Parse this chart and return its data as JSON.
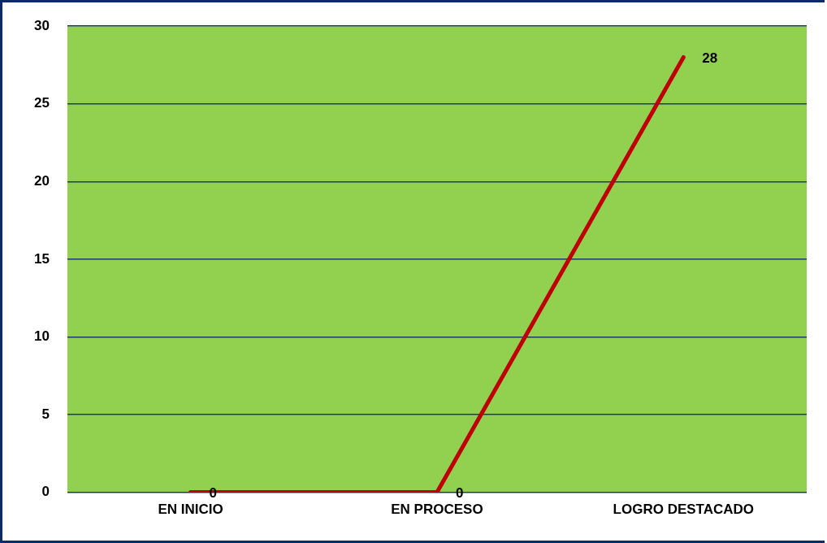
{
  "chart_data": {
    "type": "line",
    "categories": [
      "EN INICIO",
      "EN PROCESO",
      "LOGRO DESTACADO"
    ],
    "series": [
      {
        "color": "#c00000",
        "values": [
          0,
          0,
          28
        ]
      }
    ],
    "ylim": [
      0,
      30
    ],
    "yticks": [
      0,
      5,
      10,
      15,
      20,
      25,
      30
    ],
    "grid": "y",
    "legend": false,
    "marker": "none",
    "line_style": "solid",
    "data_labels": true
  }
}
